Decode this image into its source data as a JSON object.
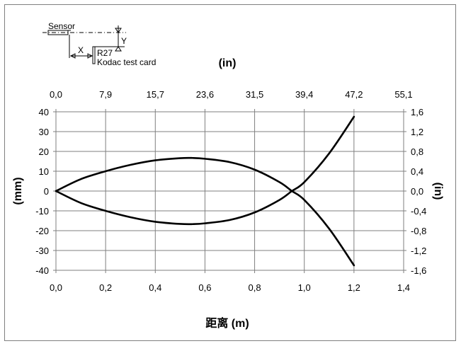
{
  "chart_data": {
    "type": "line",
    "xlabel": "距离 (m)",
    "ylabel": "(mm)",
    "x2label": "(in)",
    "y2label": "(in)",
    "xlim": [
      0,
      1.4
    ],
    "ylim": [
      -40,
      40
    ],
    "y2lim": [
      -1.6,
      1.6
    ],
    "grid": true,
    "x_ticks": [
      "0,0",
      "0,2",
      "0,4",
      "0,6",
      "0,8",
      "1,0",
      "1,2",
      "1,4"
    ],
    "x2_ticks": [
      "0,0",
      "7,9",
      "15,7",
      "23,6",
      "31,5",
      "39,4",
      "47,2",
      "55,1"
    ],
    "y_ticks": [
      "40",
      "30",
      "20",
      "10",
      "0",
      "-10",
      "-20",
      "-30",
      "-40"
    ],
    "y2_ticks": [
      "1,6",
      "1,2",
      "0,8",
      "0,4",
      "0,0",
      "-0,4",
      "-0,8",
      "-1,2",
      "-1,6"
    ],
    "series": [
      {
        "values": [
          [
            0,
            0
          ],
          [
            0.1,
            6
          ],
          [
            0.2,
            10
          ],
          [
            0.3,
            13.2
          ],
          [
            0.4,
            15.5
          ],
          [
            0.5,
            16.6
          ],
          [
            0.55,
            16.7
          ],
          [
            0.6,
            16.3
          ],
          [
            0.7,
            14.6
          ],
          [
            0.8,
            10.8
          ],
          [
            0.9,
            4.5
          ],
          [
            0.95,
            0
          ],
          [
            1.0,
            -4.5
          ],
          [
            1.1,
            -19
          ],
          [
            1.2,
            -37.5
          ]
        ]
      },
      {
        "values": [
          [
            0,
            0
          ],
          [
            0.1,
            -6
          ],
          [
            0.2,
            -10
          ],
          [
            0.3,
            -13.2
          ],
          [
            0.4,
            -15.5
          ],
          [
            0.5,
            -16.6
          ],
          [
            0.55,
            -16.7
          ],
          [
            0.6,
            -16.3
          ],
          [
            0.7,
            -14.6
          ],
          [
            0.8,
            -10.8
          ],
          [
            0.9,
            -4.5
          ],
          [
            0.95,
            0
          ],
          [
            1.0,
            4.5
          ],
          [
            1.1,
            19
          ],
          [
            1.2,
            37.5
          ]
        ]
      }
    ]
  },
  "diagram": {
    "sensor_label": "Sensor",
    "x_label": "X",
    "y_label": "Y",
    "card_code": "R27",
    "card_label": "Kodac test card"
  }
}
